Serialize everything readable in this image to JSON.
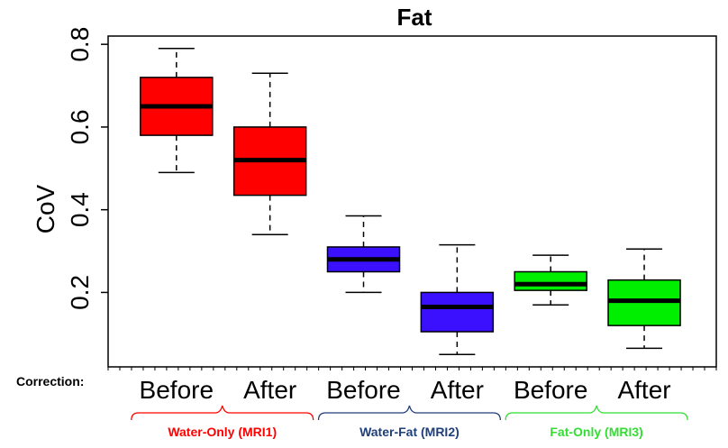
{
  "chart_data": {
    "type": "boxplot",
    "title": "Fat",
    "ylabel": "CoV",
    "xlabel": "",
    "ylim": [
      0.02,
      0.82
    ],
    "yticks": [
      0.2,
      0.4,
      0.6,
      0.8
    ],
    "ytick_labels": [
      "0.2",
      "0.4",
      "0.6",
      "0.8"
    ],
    "correction_label": "Correction:",
    "boxes": [
      {
        "label": "Before",
        "group": "Water-Only (MRI1)",
        "color": "#ff0000",
        "min": 0.49,
        "q1": 0.58,
        "median": 0.65,
        "q3": 0.72,
        "max": 0.79
      },
      {
        "label": "After",
        "group": "Water-Only (MRI1)",
        "color": "#ff0000",
        "min": 0.34,
        "q1": 0.435,
        "median": 0.52,
        "q3": 0.6,
        "max": 0.73
      },
      {
        "label": "Before",
        "group": "Water-Fat (MRI2)",
        "color": "#3b10ff",
        "min": 0.2,
        "q1": 0.25,
        "median": 0.28,
        "q3": 0.31,
        "max": 0.385
      },
      {
        "label": "After",
        "group": "Water-Fat (MRI2)",
        "color": "#3b10ff",
        "min": 0.05,
        "q1": 0.105,
        "median": 0.165,
        "q3": 0.2,
        "max": 0.315
      },
      {
        "label": "Before",
        "group": "Fat-Only (MRI3)",
        "color": "#00ee00",
        "min": 0.17,
        "q1": 0.205,
        "median": 0.22,
        "q3": 0.25,
        "max": 0.29
      },
      {
        "label": "After",
        "group": "Fat-Only (MRI3)",
        "color": "#00ee00",
        "min": 0.065,
        "q1": 0.12,
        "median": 0.18,
        "q3": 0.23,
        "max": 0.305
      }
    ],
    "groups": [
      {
        "name": "Water-Only (MRI1)",
        "color": "#ff0000"
      },
      {
        "name": "Water-Fat (MRI2)",
        "color": "#1f3f7a"
      },
      {
        "name": "Fat-Only (MRI3)",
        "color": "#33dd33"
      }
    ]
  }
}
